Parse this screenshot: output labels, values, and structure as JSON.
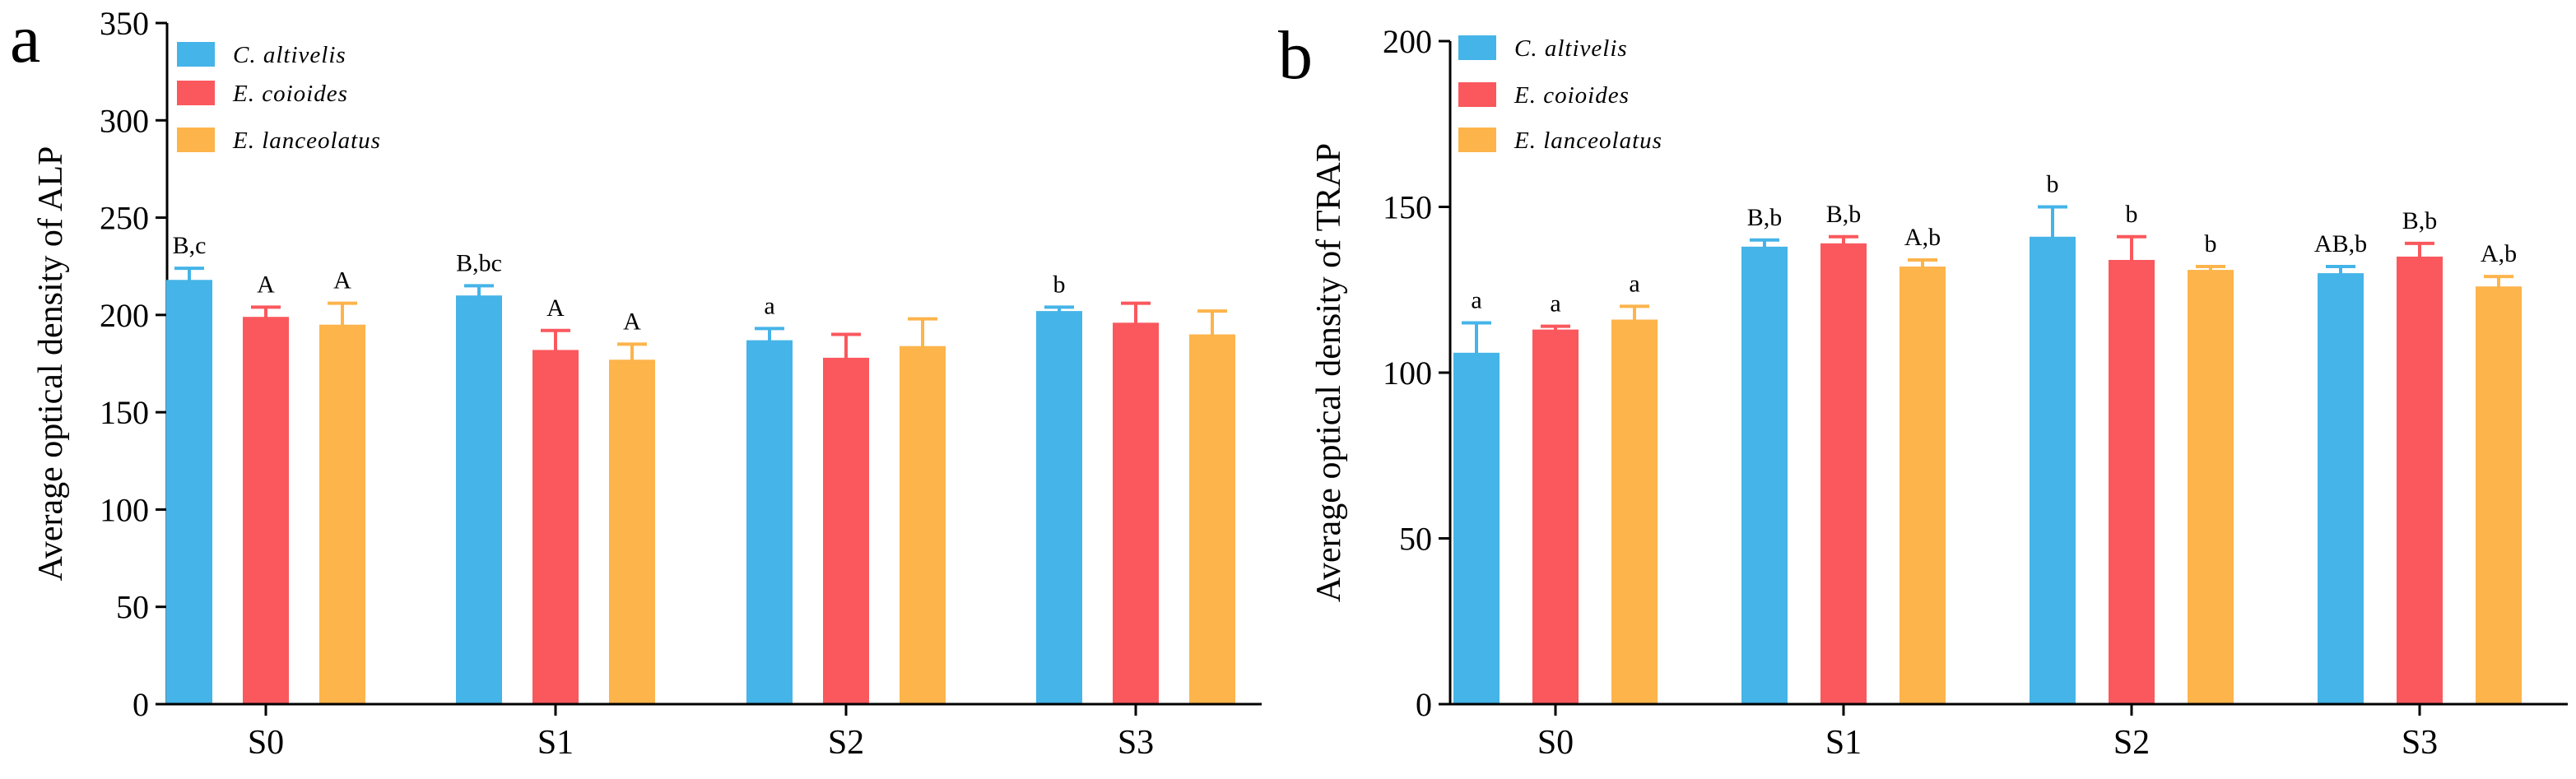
{
  "panels": [
    {
      "panel_label": "a",
      "legend": [
        {
          "name": "C. altivelis",
          "color": "#45B4E8"
        },
        {
          "name": "E. coioides",
          "color": "#FA585D"
        },
        {
          "name": "E. lanceolatus",
          "color": "#FDB44B"
        }
      ],
      "chart_data": {
        "type": "bar",
        "title": "",
        "xlabel": "",
        "ylabel": "Average optical density of ALP",
        "ylim": [
          0,
          350
        ],
        "yticks": [
          0,
          50,
          100,
          150,
          200,
          250,
          300,
          350
        ],
        "yticks_text": [
          "0",
          "50",
          "100",
          "150",
          "200",
          "250",
          "300",
          "350"
        ],
        "categories": [
          "S0",
          "S1",
          "S2",
          "S3"
        ],
        "legend_position": "top-left",
        "series": [
          {
            "name": "C. altivelis",
            "color": "#45B4E8",
            "values": [
              218,
              210,
              187,
              202
            ],
            "errors": [
              6,
              5,
              6,
              2
            ],
            "labels": [
              "B,c",
              "B,bc",
              "a",
              "b"
            ]
          },
          {
            "name": "E. coioides",
            "color": "#FA585D",
            "values": [
              199,
              182,
              178,
              196
            ],
            "errors": [
              5,
              10,
              12,
              10
            ],
            "labels": [
              "A",
              "A",
              "",
              ""
            ]
          },
          {
            "name": "E. lanceolatus",
            "color": "#FDB44B",
            "values": [
              195,
              177,
              184,
              190
            ],
            "errors": [
              11,
              8,
              14,
              12
            ],
            "labels": [
              "A",
              "A",
              "",
              ""
            ]
          }
        ]
      }
    },
    {
      "panel_label": "b",
      "legend": [
        {
          "name": "C. altivelis",
          "color": "#45B4E8"
        },
        {
          "name": "E. coioides",
          "color": "#FA585D"
        },
        {
          "name": "E. lanceolatus",
          "color": "#FDB44B"
        }
      ],
      "chart_data": {
        "type": "bar",
        "title": "",
        "xlabel": "",
        "ylabel": "Average optical density of TRAP",
        "ylim": [
          0,
          200
        ],
        "yticks": [
          0,
          50,
          100,
          150,
          200
        ],
        "yticks_text": [
          "0",
          "50",
          "100",
          "150",
          "200"
        ],
        "categories": [
          "S0",
          "S1",
          "S2",
          "S3"
        ],
        "legend_position": "top-left",
        "series": [
          {
            "name": "C. altivelis",
            "color": "#45B4E8",
            "values": [
              106,
              138,
              141,
              130
            ],
            "errors": [
              9,
              2,
              9,
              2
            ],
            "labels": [
              "a",
              "B,b",
              "b",
              "AB,b"
            ]
          },
          {
            "name": "E. coioides",
            "color": "#FA585D",
            "values": [
              113,
              139,
              134,
              135
            ],
            "errors": [
              1,
              2,
              7,
              4
            ],
            "labels": [
              "a",
              "B,b",
              "b",
              "B,b"
            ]
          },
          {
            "name": "E. lanceolatus",
            "color": "#FDB44B",
            "values": [
              116,
              132,
              131,
              126
            ],
            "errors": [
              4,
              2,
              1,
              3
            ],
            "labels": [
              "a",
              "A,b",
              "b",
              "A,b"
            ]
          }
        ]
      }
    }
  ]
}
